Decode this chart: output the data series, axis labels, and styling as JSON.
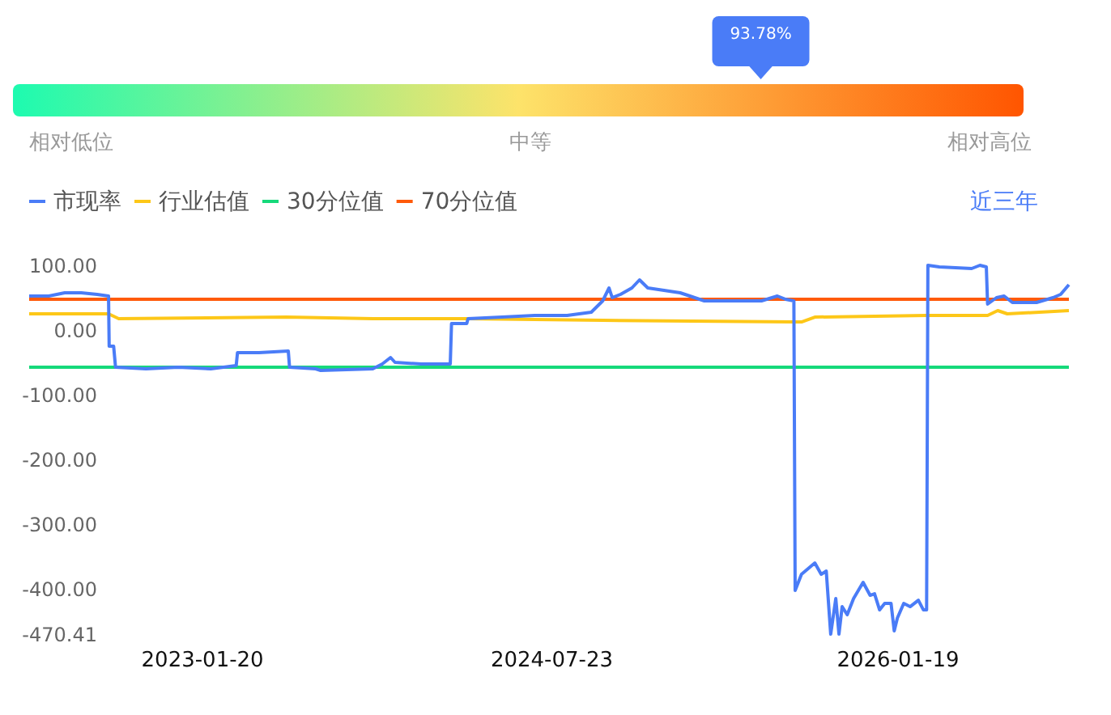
{
  "chart_data": [
    {
      "type": "other",
      "annotations": [
        "93.78%",
        "相对低位",
        "中等",
        "相对高位"
      ],
      "colors": [
        "#1dfbb0",
        "#fde36a",
        "#ff5500"
      ]
    },
    {
      "type": "line",
      "legend": "top left",
      "annotations": [
        "近三年"
      ],
      "xlim": [
        "2022-04-22",
        "2026-10-15"
      ],
      "xticks": [
        "2023-01-20",
        "2024-07-23",
        "2026-01-19"
      ],
      "ylim": [
        -470.41,
        100
      ],
      "yticks": [
        {
          "value": 100,
          "label": "100.00"
        },
        {
          "value": 0,
          "label": "0.00"
        },
        {
          "value": -100,
          "label": "-100.00"
        },
        {
          "value": -200,
          "label": "-200.00"
        },
        {
          "value": -300,
          "label": "-300.00"
        },
        {
          "value": -400,
          "label": "-400.00"
        },
        {
          "value": -470.41,
          "label": "-470.41"
        }
      ],
      "series": [
        {
          "name": "市现率",
          "color": "#4a7cf7",
          "x": [
            "2022-04-22",
            "2022-05-23",
            "2022-06-17",
            "2022-07-13",
            "2022-08-07",
            "2022-08-25",
            "2022-08-26",
            "2022-09-02",
            "2022-09-05",
            "2022-10-23",
            "2022-12-13",
            "2023-02-02",
            "2023-03-14",
            "2023-03-16",
            "2023-04-19",
            "2023-06-04",
            "2023-06-06",
            "2023-07-17",
            "2023-07-25",
            "2023-10-15",
            "2023-10-30",
            "2023-11-12",
            "2023-11-19",
            "2023-12-30",
            "2024-02-14",
            "2024-02-16",
            "2024-03-11",
            "2024-03-13",
            "2024-05-06",
            "2024-06-26",
            "2024-08-16",
            "2024-09-23",
            "2024-10-11",
            "2024-10-21",
            "2024-10-26",
            "2024-11-08",
            "2024-11-26",
            "2024-12-08",
            "2024-12-21",
            "2025-02-10",
            "2025-03-20",
            "2025-04-28",
            "2025-06-18",
            "2025-07-13",
            "2025-07-26",
            "2025-08-08",
            "2025-08-10",
            "2025-08-20",
            "2025-09-10",
            "2025-09-20",
            "2025-09-28",
            "2025-10-05",
            "2025-10-13",
            "2025-10-18",
            "2025-10-23",
            "2025-10-31",
            "2025-11-10",
            "2025-11-25",
            "2025-12-06",
            "2025-12-13",
            "2025-12-21",
            "2025-12-29",
            "2026-01-08",
            "2026-01-13",
            "2026-01-18",
            "2026-01-28",
            "2026-02-07",
            "2026-02-20",
            "2026-02-28",
            "2026-03-05",
            "2026-03-07",
            "2026-03-25",
            "2026-05-15",
            "2026-05-28",
            "2026-06-07",
            "2026-06-09",
            "2026-06-23",
            "2026-07-05",
            "2026-07-18",
            "2026-08-25",
            "2026-09-20",
            "2026-10-02",
            "2026-10-15"
          ],
          "values": [
            52.5,
            52.5,
            57.5,
            57.5,
            55,
            52.5,
            -25,
            -25,
            -57.5,
            -60,
            -57.5,
            -60,
            -55,
            -35,
            -35,
            -32.5,
            -57.5,
            -60,
            -62.5,
            -60,
            -52.5,
            -42.5,
            -50,
            -52.5,
            -52.5,
            10,
            10,
            17.5,
            20,
            22.5,
            22.5,
            27.5,
            45,
            65,
            50,
            55,
            65,
            77.5,
            65,
            57.5,
            45,
            45,
            45,
            52.5,
            47.5,
            45,
            -402.5,
            -377.5,
            -360,
            -377.5,
            -372.5,
            -470,
            -415,
            -470,
            -427.5,
            -440,
            -415,
            -390,
            -410,
            -407.5,
            -432.5,
            -422.5,
            -422.5,
            -465,
            -445,
            -422.5,
            -427.5,
            -417.5,
            -432.5,
            -432.5,
            100,
            97.5,
            95,
            100,
            97.5,
            40,
            50,
            52.5,
            42.5,
            42.5,
            50,
            55,
            70
          ]
        },
        {
          "name": "行业估值",
          "color": "#fdc718",
          "x": [
            "2022-04-22",
            "2022-08-25",
            "2022-09-10",
            "2023-06-01",
            "2023-10-15",
            "2024-03-11",
            "2024-10-11",
            "2025-08-08",
            "2025-08-20",
            "2025-09-10",
            "2026-03-05",
            "2026-06-09",
            "2026-06-25",
            "2026-07-10",
            "2026-10-15"
          ],
          "values": [
            25,
            25,
            17.5,
            20,
            17.5,
            17.5,
            15,
            12.5,
            12.5,
            20,
            22.5,
            22.5,
            30,
            25,
            30
          ]
        },
        {
          "name": "30分位值",
          "color": "#16d97a",
          "x": [
            "2022-04-22",
            "2026-10-15"
          ],
          "values": [
            -57.5,
            -57.5
          ]
        },
        {
          "name": "70分位值",
          "color": "#ff5a0a",
          "x": [
            "2022-04-22",
            "2026-10-15"
          ],
          "values": [
            47.5,
            47.5
          ]
        }
      ]
    }
  ]
}
